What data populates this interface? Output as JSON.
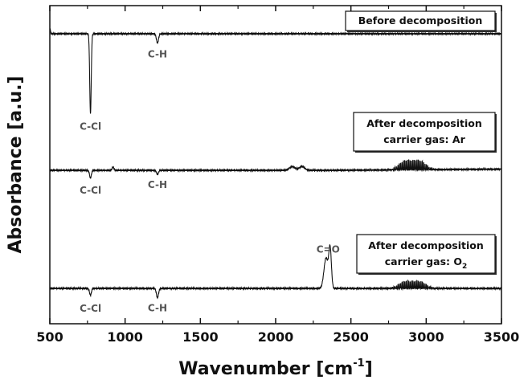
{
  "chart_data": {
    "type": "line",
    "title": "",
    "xlabel": "Wavenumber [cm",
    "xlabel_sup": "-1",
    "xlabel_end": "]",
    "ylabel": "Absorbance [a.u.]",
    "xlim": [
      500,
      3500
    ],
    "xticks": [
      500,
      1000,
      1500,
      2000,
      2500,
      3000,
      3500
    ],
    "yticks": "none",
    "grid": false,
    "series": [
      {
        "name": "Before decomposition",
        "baseline": 0.0,
        "features": [
          {
            "type": "dip",
            "center": 770,
            "width": 5,
            "depth": 1.05,
            "label": "C-Cl"
          },
          {
            "type": "dip",
            "center": 1215,
            "width": 7,
            "depth": 0.12,
            "label": "C-H"
          },
          {
            "type": "edge_peak",
            "center": 500,
            "height": 0.07
          }
        ]
      },
      {
        "name_lines": [
          "After decomposition",
          "carrier gas: Ar"
        ],
        "baseline": 0.0,
        "features": [
          {
            "type": "dip",
            "center": 770,
            "width": 6,
            "depth": 0.1,
            "label": "C-Cl"
          },
          {
            "type": "peak",
            "center": 920,
            "width": 6,
            "height": 0.04
          },
          {
            "type": "dip",
            "center": 1215,
            "width": 7,
            "depth": 0.05,
            "label": "C-H"
          },
          {
            "type": "peak",
            "center": 2110,
            "width": 18,
            "height": 0.05
          },
          {
            "type": "peak",
            "center": 2175,
            "width": 18,
            "height": 0.05
          },
          {
            "type": "rotational_band",
            "centers": [
              2860,
              2955
            ],
            "halfwidth": 95,
            "height": 0.13,
            "spacing": 9
          }
        ]
      },
      {
        "name_lines": [
          "After decomposition",
          "carrier gas: O",
          "2"
        ],
        "baseline": 0.0,
        "features": [
          {
            "type": "dip",
            "center": 770,
            "width": 6,
            "depth": 0.09,
            "label": "C-Cl"
          },
          {
            "type": "dip",
            "center": 1215,
            "width": 7,
            "depth": 0.12,
            "label": "C-H"
          },
          {
            "type": "doublet",
            "centers": [
              2335,
              2362
            ],
            "width": 14,
            "height": 0.5,
            "label": "C=O"
          },
          {
            "type": "rotational_band",
            "centers": [
              2860,
              2955
            ],
            "halfwidth": 95,
            "height": 0.1,
            "spacing": 9
          }
        ]
      }
    ]
  }
}
